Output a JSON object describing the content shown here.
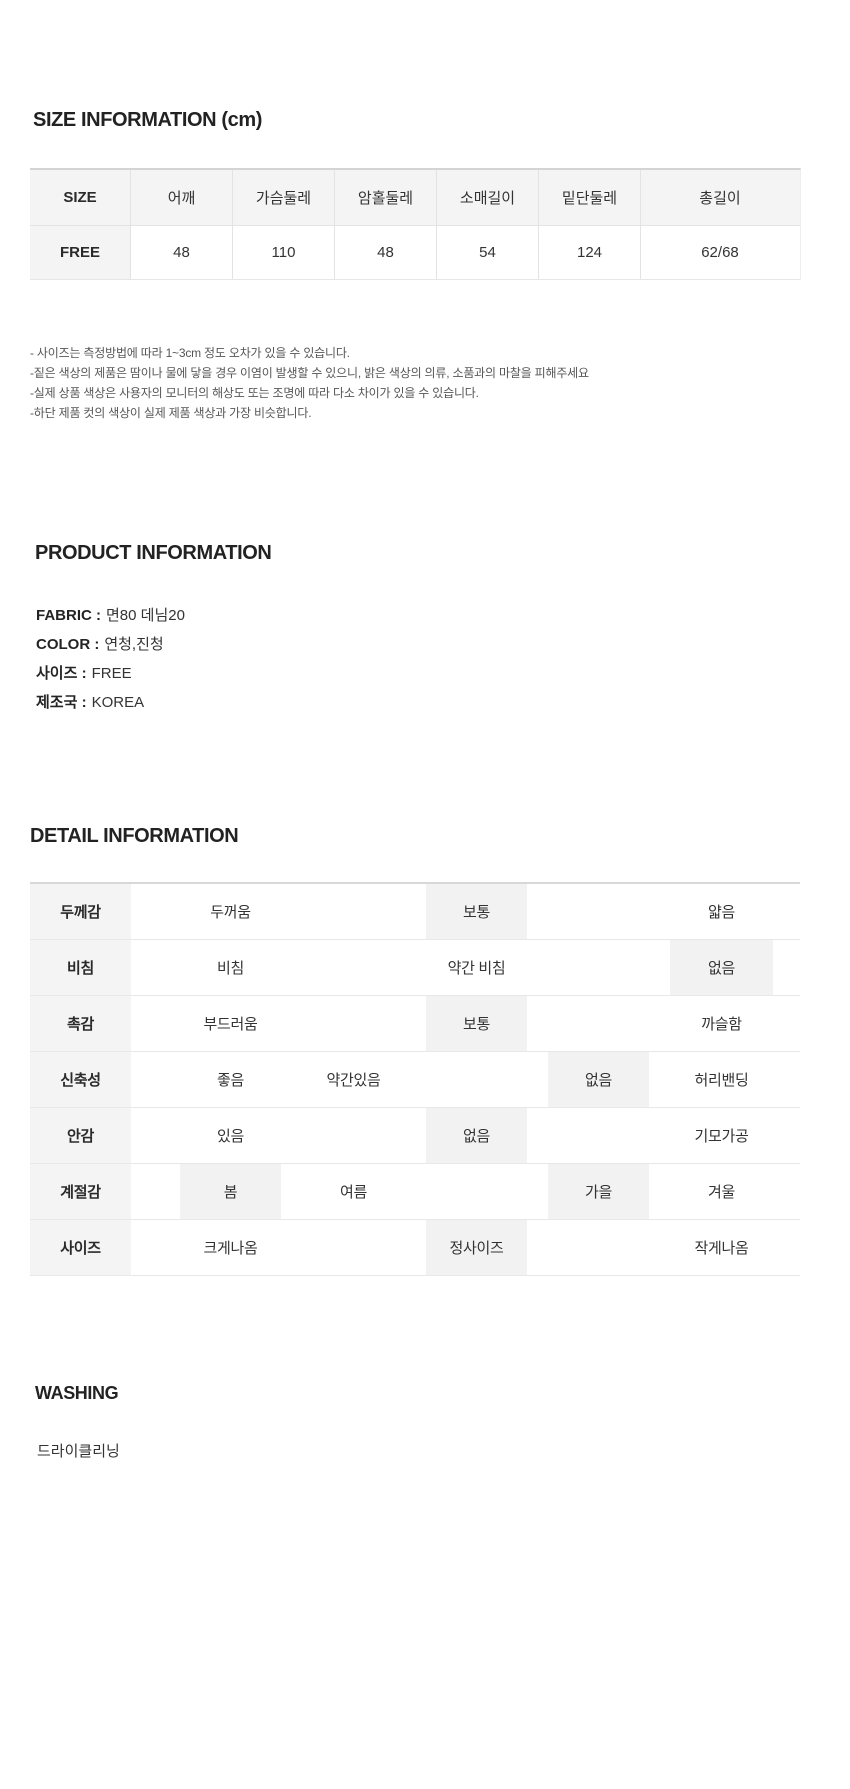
{
  "size_section": {
    "heading": "SIZE INFORMATION (cm)",
    "table": {
      "columns": [
        "SIZE",
        "어깨",
        "가슴둘레",
        "암홀둘레",
        "소매길이",
        "밑단둘레",
        "총길이"
      ],
      "rows": [
        [
          "FREE",
          "48",
          "110",
          "48",
          "54",
          "124",
          "62/68"
        ]
      ]
    },
    "notes": [
      "- 사이즈는 측정방법에 따라 1~3cm 정도 오차가 있을 수 있습니다.",
      "-짙은 색상의 제품은 땀이나 물에 닿을 경우 이염이 발생할 수 있으니, 밝은 색상의 의류, 소품과의 마찰을 피해주세요",
      "-실제 상품 색상은 사용자의 모니터의 해상도 또는 조명에 따라 다소 차이가 있을 수 있습니다.",
      "-하단 제품 컷의 색상이 실제 제품 색상과 가장 비슷합니다."
    ]
  },
  "product_section": {
    "heading": "PRODUCT INFORMATION",
    "fields": [
      {
        "label": "FABRIC :",
        "value": "면80 데님20"
      },
      {
        "label": "COLOR :",
        "value": "연청,진청"
      },
      {
        "label": "사이즈 :",
        "value": "FREE"
      },
      {
        "label": "제조국 :",
        "value": "KOREA"
      }
    ]
  },
  "detail_section": {
    "heading": "DETAIL INFORMATION",
    "rows": [
      {
        "label": "두께감",
        "options": [
          {
            "text": "두꺼움",
            "slot": 1,
            "active": false
          },
          {
            "text": "보통",
            "slot": 3,
            "active": true
          },
          {
            "text": "얇음",
            "slot": 5,
            "active": false
          }
        ]
      },
      {
        "label": "비침",
        "options": [
          {
            "text": "비침",
            "slot": 1,
            "active": false
          },
          {
            "text": "약간 비침",
            "slot": 3,
            "active": false
          },
          {
            "text": "없음",
            "slot": 5,
            "active": true
          }
        ]
      },
      {
        "label": "촉감",
        "options": [
          {
            "text": "부드러움",
            "slot": 1,
            "active": false
          },
          {
            "text": "보통",
            "slot": 3,
            "active": true
          },
          {
            "text": "까슬함",
            "slot": 5,
            "active": false
          }
        ]
      },
      {
        "label": "신축성",
        "options": [
          {
            "text": "좋음",
            "slot": 1,
            "active": false
          },
          {
            "text": "약간있음",
            "slot": 2,
            "active": false
          },
          {
            "text": "없음",
            "slot": 4,
            "active": true
          },
          {
            "text": "허리밴딩",
            "slot": 5,
            "active": false
          }
        ]
      },
      {
        "label": "안감",
        "options": [
          {
            "text": "있음",
            "slot": 1,
            "active": false
          },
          {
            "text": "없음",
            "slot": 3,
            "active": true
          },
          {
            "text": "기모가공",
            "slot": 5,
            "active": false
          }
        ]
      },
      {
        "label": "계절감",
        "options": [
          {
            "text": "봄",
            "slot": 1,
            "active": true
          },
          {
            "text": "여름",
            "slot": 2,
            "active": false
          },
          {
            "text": "가을",
            "slot": 4,
            "active": true
          },
          {
            "text": "겨울",
            "slot": 5,
            "active": false
          }
        ]
      },
      {
        "label": "사이즈",
        "options": [
          {
            "text": "크게나옴",
            "slot": 1,
            "active": false
          },
          {
            "text": "정사이즈",
            "slot": 3,
            "active": true
          },
          {
            "text": "작게나옴",
            "slot": 5,
            "active": false
          }
        ]
      }
    ]
  },
  "washing_section": {
    "heading": "WASHING",
    "text": "드라이클리닝"
  },
  "colors": {
    "heading_text": "#222222",
    "body_text": "#333333",
    "note_text": "#565656",
    "label_cell_bg": "#f4f4f4",
    "active_cell_bg": "#f2f2f2",
    "row_border": "#e8e8e8",
    "col_border": "#e3e3e3",
    "table_top_border": "#d4d4d4"
  }
}
